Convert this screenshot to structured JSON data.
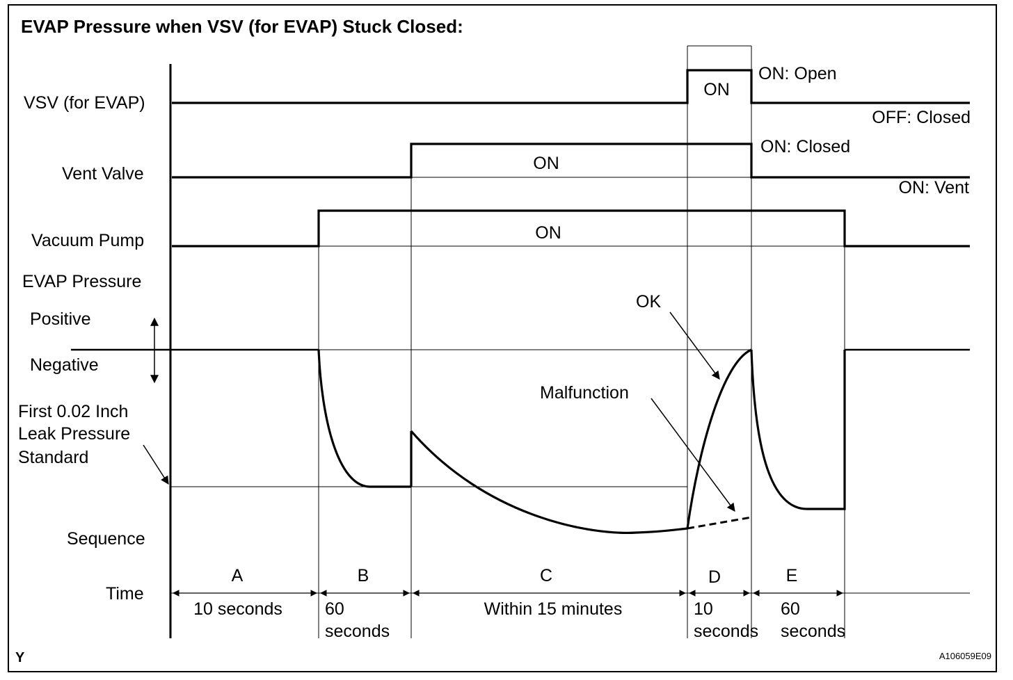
{
  "title": "EVAP Pressure when VSV (for EVAP) Stuck Closed:",
  "signals": {
    "vsv": "VSV (for EVAP)",
    "vent_valve": "Vent Valve",
    "vacuum_pump": "Vacuum Pump",
    "evap_pressure": "EVAP Pressure",
    "positive": "Positive",
    "negative": "Negative",
    "leak_std_1": "First 0.02 Inch",
    "leak_std_2": "Leak Pressure",
    "leak_std_3": "Standard",
    "sequence": "Sequence",
    "time": "Time"
  },
  "states": {
    "vsv_on": "ON",
    "vsv_open": "ON: Open",
    "vsv_closed": "OFF: Closed",
    "vent_on": "ON",
    "vent_closed": "ON: Closed",
    "vent_vent": "ON: Vent",
    "pump_on": "ON"
  },
  "curve_labels": {
    "ok": "OK",
    "malfunction": "Malfunction"
  },
  "sequence": [
    {
      "letter": "A",
      "time1": "10 seconds",
      "time2": ""
    },
    {
      "letter": "B",
      "time1": "60",
      "time2": "seconds"
    },
    {
      "letter": "C",
      "time1": "Within 15 minutes",
      "time2": ""
    },
    {
      "letter": "D",
      "time1": "10",
      "time2": "seconds"
    },
    {
      "letter": "E",
      "time1": "60",
      "time2": "seconds"
    }
  ],
  "footer": {
    "left": "Y",
    "right": "A106059E09"
  }
}
